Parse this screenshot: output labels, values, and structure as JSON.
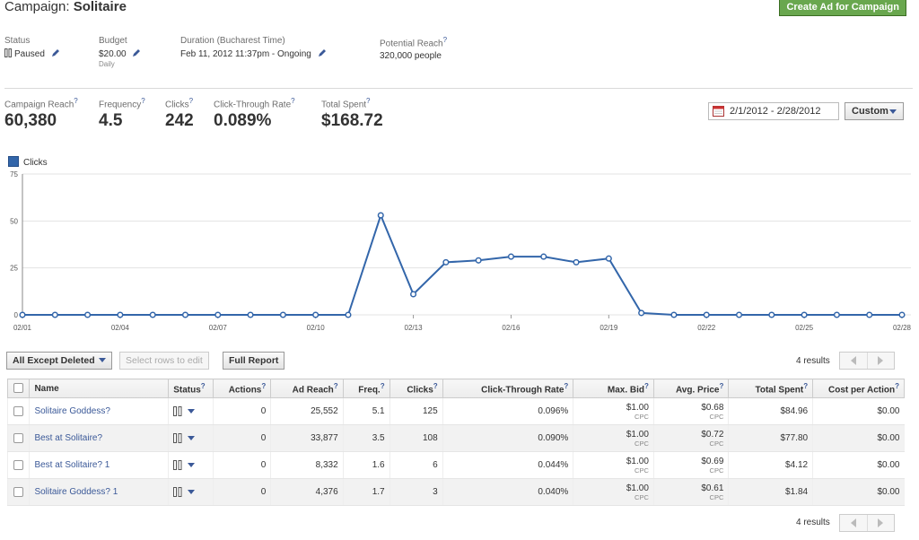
{
  "header": {
    "title_prefix": "Campaign:",
    "title_name": "Solitaire",
    "create_button": "Create Ad for Campaign"
  },
  "summary": {
    "status_label": "Status",
    "status_value": "Paused",
    "budget_label": "Budget",
    "budget_value": "$20.00",
    "budget_sub": "Daily",
    "duration_label": "Duration (Bucharest Time)",
    "duration_value": "Feb 11, 2012 11:37pm - Ongoing",
    "reach_label": "Potential Reach",
    "reach_value": "320,000 people"
  },
  "stats": [
    {
      "label": "Campaign Reach",
      "value": "60,380"
    },
    {
      "label": "Frequency",
      "value": "4.5"
    },
    {
      "label": "Clicks",
      "value": "242"
    },
    {
      "label": "Click-Through Rate",
      "value": "0.089%"
    },
    {
      "label": "Total Spent",
      "value": "$168.72"
    }
  ],
  "date_range": "2/1/2012 - 2/28/2012",
  "custom_button": "Custom",
  "chart_data": {
    "type": "line",
    "legend": "Clicks",
    "series": [
      {
        "name": "Clicks",
        "color": "#3366aa",
        "values": [
          0,
          0,
          0,
          0,
          0,
          0,
          0,
          0,
          0,
          0,
          0,
          53,
          11,
          28,
          29,
          31,
          31,
          28,
          30,
          1,
          0,
          0,
          0,
          0,
          0,
          0,
          0,
          0
        ]
      }
    ],
    "x": [
      "02/01",
      "02/02",
      "02/03",
      "02/04",
      "02/05",
      "02/06",
      "02/07",
      "02/08",
      "02/09",
      "02/10",
      "02/11",
      "02/12",
      "02/13",
      "02/14",
      "02/15",
      "02/16",
      "02/17",
      "02/18",
      "02/19",
      "02/20",
      "02/21",
      "02/22",
      "02/23",
      "02/24",
      "02/25",
      "02/26",
      "02/27",
      "02/28"
    ],
    "x_tick_labels": [
      "02/01",
      "02/04",
      "02/07",
      "02/10",
      "02/13",
      "02/16",
      "02/19",
      "02/22",
      "02/25",
      "02/28"
    ],
    "y_ticks": [
      "0",
      "25",
      "50",
      "75"
    ],
    "ylim": [
      0,
      75
    ],
    "grid": true
  },
  "toolbar": {
    "filter_label": "All Except Deleted",
    "edit_label": "Select rows to edit",
    "report_label": "Full Report",
    "results": "4 results"
  },
  "table": {
    "headers": [
      "Name",
      "Status",
      "Actions",
      "Ad Reach",
      "Freq.",
      "Clicks",
      "Click-Through Rate",
      "Max. Bid",
      "Avg. Price",
      "Total Spent",
      "Cost per Action"
    ],
    "rows": [
      {
        "name": "Solitaire Goddess?",
        "actions": "0",
        "reach": "25,552",
        "freq": "5.1",
        "clicks": "125",
        "ctr": "0.096%",
        "bid": "$1.00",
        "bid_sub": "CPC",
        "price": "$0.68",
        "price_sub": "CPC",
        "spent": "$84.96",
        "cpa": "$0.00"
      },
      {
        "name": "Best at Solitaire?",
        "actions": "0",
        "reach": "33,877",
        "freq": "3.5",
        "clicks": "108",
        "ctr": "0.090%",
        "bid": "$1.00",
        "bid_sub": "CPC",
        "price": "$0.72",
        "price_sub": "CPC",
        "spent": "$77.80",
        "cpa": "$0.00"
      },
      {
        "name": "Best at Solitaire? 1",
        "actions": "0",
        "reach": "8,332",
        "freq": "1.6",
        "clicks": "6",
        "ctr": "0.044%",
        "bid": "$1.00",
        "bid_sub": "CPC",
        "price": "$0.69",
        "price_sub": "CPC",
        "spent": "$4.12",
        "cpa": "$0.00"
      },
      {
        "name": "Solitaire Goddess? 1",
        "actions": "0",
        "reach": "4,376",
        "freq": "1.7",
        "clicks": "3",
        "ctr": "0.040%",
        "bid": "$1.00",
        "bid_sub": "CPC",
        "price": "$0.61",
        "price_sub": "CPC",
        "spent": "$1.84",
        "cpa": "$0.00"
      }
    ]
  },
  "footer": {
    "results": "4 results"
  }
}
